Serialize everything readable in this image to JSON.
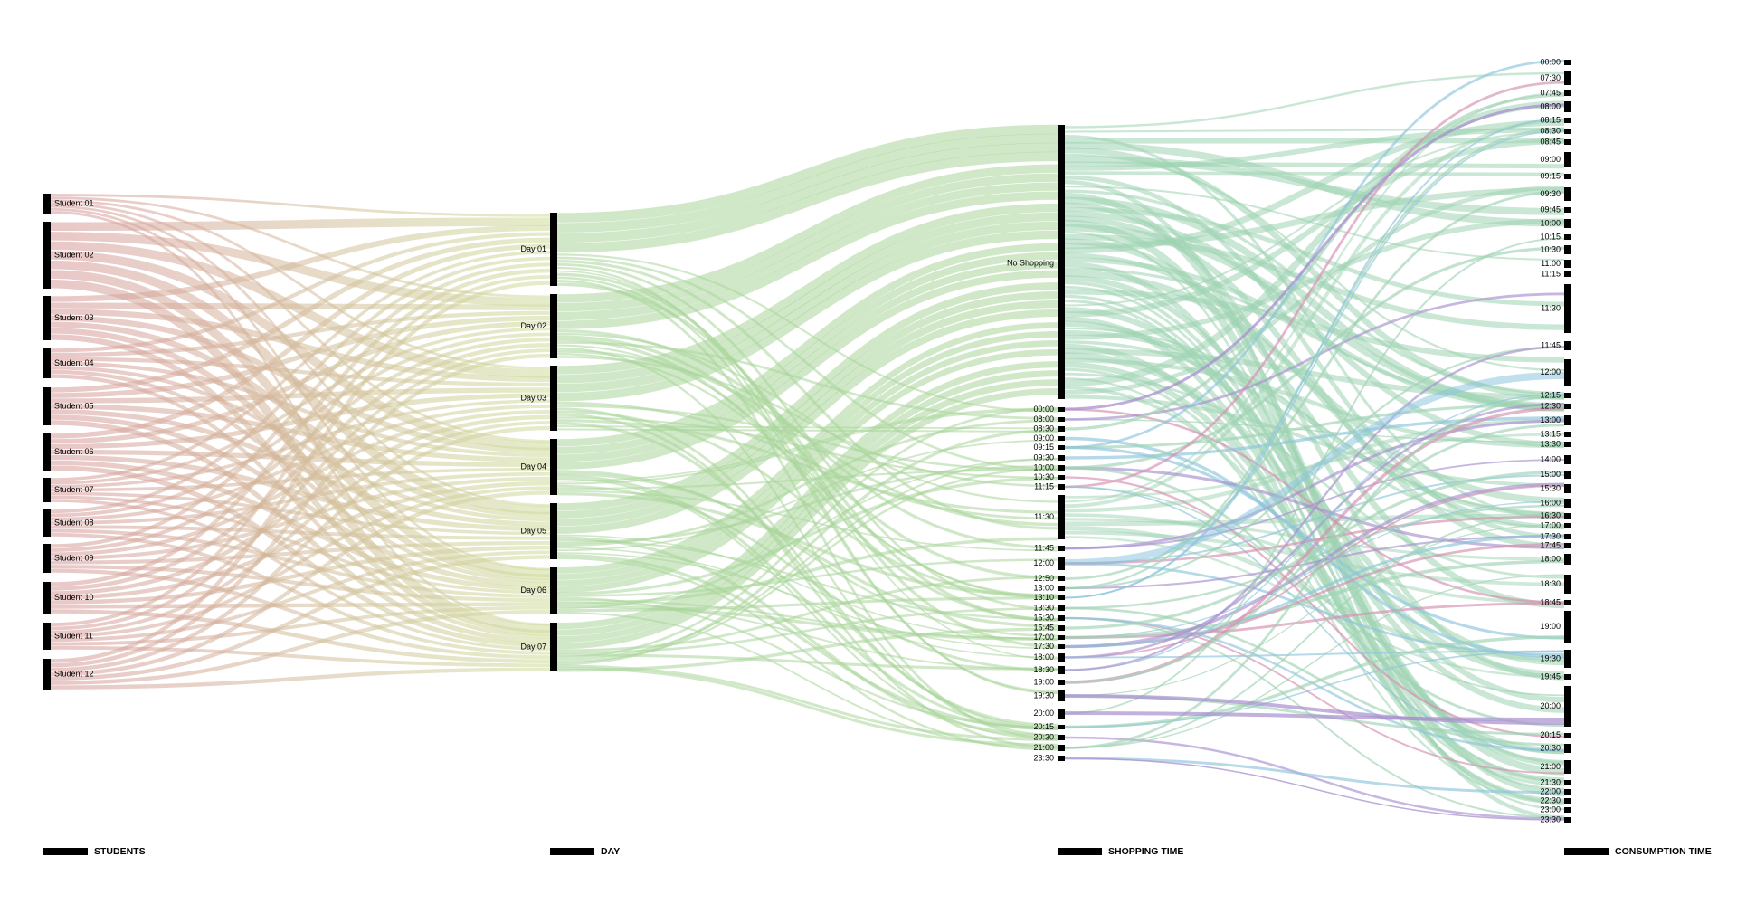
{
  "columns": {
    "students": {
      "legend": "STUDENTS",
      "nodes": [
        "Student 01",
        "Student 02",
        "Student 03",
        "Student 04",
        "Student 05",
        "Student 06",
        "Student 07",
        "Student 08",
        "Student 09",
        "Student 10",
        "Student 11",
        "Student 12"
      ]
    },
    "day": {
      "legend": "DAY",
      "nodes": [
        "Day 01",
        "Day 02",
        "Day 03",
        "Day 04",
        "Day 05",
        "Day 06",
        "Day 07"
      ]
    },
    "shopping_time": {
      "legend": "SHOPPING TIME",
      "nodes": [
        "No Shopping",
        "00:00",
        "08:00",
        "08:30",
        "09:00",
        "09:15",
        "09:30",
        "10:00",
        "10:30",
        "11:15",
        "11:30",
        "11:45",
        "12:00",
        "12:50",
        "13:00",
        "13:10",
        "13:30",
        "15:30",
        "15:45",
        "17:00",
        "17:30",
        "18:00",
        "18:30",
        "19:00",
        "19:30",
        "20:00",
        "20:15",
        "20:30",
        "21:00",
        "23:30"
      ]
    },
    "consumption_time": {
      "legend": "CONSUMPTION TIME",
      "nodes": [
        "00:00",
        "07:30",
        "07:45",
        "08:00",
        "08:15",
        "08:30",
        "08:45",
        "09:00",
        "09:15",
        "09:30",
        "09:45",
        "10:00",
        "10:15",
        "10:30",
        "11:00",
        "11:15",
        "11:30",
        "11:45",
        "12:00",
        "12:15",
        "12:30",
        "13:00",
        "13:15",
        "13:30",
        "14:00",
        "15:00",
        "15:30",
        "16:00",
        "16:30",
        "17:00",
        "17:30",
        "17:45",
        "18:00",
        "18:30",
        "18:45",
        "19:00",
        "19:30",
        "19:45",
        "20:00",
        "20:15",
        "20:30",
        "21:00",
        "21:30",
        "22:00",
        "22:30",
        "23:00",
        "23:30"
      ]
    }
  },
  "colors": {
    "students": "#d9a6a6",
    "students_end": "#c9d69a",
    "day_to_shopping": "#a9d59a",
    "no_shopping": "#9fd3b3",
    "blue": "#8ec5dc",
    "purple": "#a890cf",
    "pink": "#d68fb0"
  }
}
